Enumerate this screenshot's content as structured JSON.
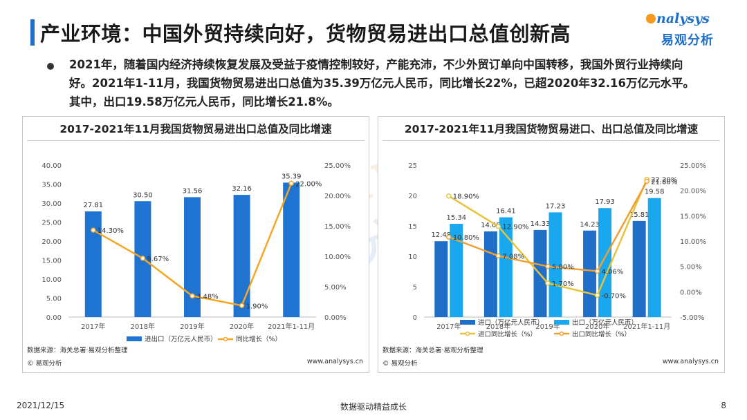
{
  "header": {
    "title": "产业环境：中国外贸持续向好，货物贸易进出口总值创新高",
    "logo_en": "nalysys",
    "logo_cn": "易观分析"
  },
  "intro": {
    "text": "2021年，随着国内经济持续恢复发展及受益于疫情控制较好，产能充沛，不少外贸订单向中国转移，我国外贸行业持续向好。2021年1-11月，我国货物贸易进出口总值为35.39万亿元人民币，同比增长22%，已超2020年32.16万亿元水平。其中，出口19.58万亿元人民币，同比增长21.8%。"
  },
  "colors": {
    "import_bar": "#1f6fc8",
    "export_bar": "#19a8ee",
    "total_bar": "#1f74d1",
    "growth_line": "#f5a623",
    "import_growth_line": "#e8c23a",
    "export_growth_line": "#f0a030"
  },
  "watermark": {
    "en": "analysys",
    "cn": "易观分析"
  },
  "chart_data": [
    {
      "type": "bar",
      "title": "2017-2021年11月我国货物贸易进出口总值及同比增速",
      "categories": [
        "2017年",
        "2018年",
        "2019年",
        "2020年",
        "2021年1-11月"
      ],
      "y_ticks": [
        "0.00",
        "5.00",
        "10.00",
        "15.00",
        "20.00",
        "25.00",
        "30.00",
        "35.00",
        "40.00"
      ],
      "y2_ticks": [
        "0.00%",
        "5.00%",
        "10.00%",
        "15.00%",
        "20.00%",
        "25.00%"
      ],
      "ylim": [
        0,
        40
      ],
      "y2lim": [
        0,
        25
      ],
      "legend_position": "bottom",
      "series": [
        {
          "name": "进出口（万亿元人民币）",
          "kind": "bar",
          "axis": "left",
          "values": [
            27.81,
            30.5,
            31.56,
            32.16,
            35.39
          ],
          "labels": [
            "27.81",
            "30.50",
            "31.56",
            "32.16",
            "35.39"
          ]
        },
        {
          "name": "同比增长（%）",
          "kind": "line",
          "axis": "right",
          "values": [
            14.3,
            9.67,
            3.48,
            1.9,
            22.0
          ],
          "labels": [
            "14.30%",
            "9.67%",
            "3.48%",
            "1.90%",
            "22.00%"
          ]
        }
      ],
      "source": "数据来源：海关总署·易观分析整理",
      "copyright": "© 易观分析",
      "site": "www.analysys.cn"
    },
    {
      "type": "bar",
      "title": "2017-2021年11月我国货物贸易进口、出口总值及同比增速",
      "categories": [
        "2017年",
        "2018年",
        "2019年",
        "2020年",
        "2021年1-11月"
      ],
      "y_ticks": [
        "0",
        "5",
        "10",
        "15",
        "20",
        "25"
      ],
      "y2_ticks": [
        "-5.00%",
        "0.00%",
        "5.00%",
        "10.00%",
        "15.00%",
        "20.00%",
        "25.00%"
      ],
      "ylim": [
        0,
        25
      ],
      "y2lim": [
        -5,
        25
      ],
      "legend_position": "bottom",
      "series": [
        {
          "name": "进口（万亿元人民币）",
          "kind": "bar",
          "axis": "left",
          "values": [
            12.48,
            14.09,
            14.33,
            14.23,
            15.81
          ],
          "labels": [
            "12.48",
            "14.09",
            "14.33",
            "14.23",
            "15.81"
          ]
        },
        {
          "name": "出口（万亿元人民币）",
          "kind": "bar",
          "axis": "left",
          "values": [
            15.34,
            16.41,
            17.23,
            17.93,
            19.58
          ],
          "labels": [
            "15.34",
            "16.41",
            "17.23",
            "17.93",
            "19.58"
          ]
        },
        {
          "name": "进口同比增长（%）",
          "kind": "line",
          "axis": "right",
          "values": [
            18.9,
            12.9,
            1.7,
            -0.7,
            22.2
          ],
          "labels": [
            "18.90%",
            "12.90%",
            "1.70%",
            "-0.70%",
            "22.20%"
          ]
        },
        {
          "name": "出口同比增长（%）",
          "kind": "line",
          "axis": "right",
          "values": [
            10.8,
            7.08,
            5.0,
            4.06,
            21.8
          ],
          "labels": [
            "10.80%",
            "7.08%",
            "5.00%",
            "4.06%",
            "21.80%"
          ]
        }
      ],
      "source": "数据来源：海关总署·易观分析整理",
      "copyright": "© 易观分析",
      "site": "www.analysys.cn"
    }
  ],
  "footer": {
    "date": "2021/12/15",
    "slogan": "数据驱动精益成长",
    "page": "8"
  }
}
